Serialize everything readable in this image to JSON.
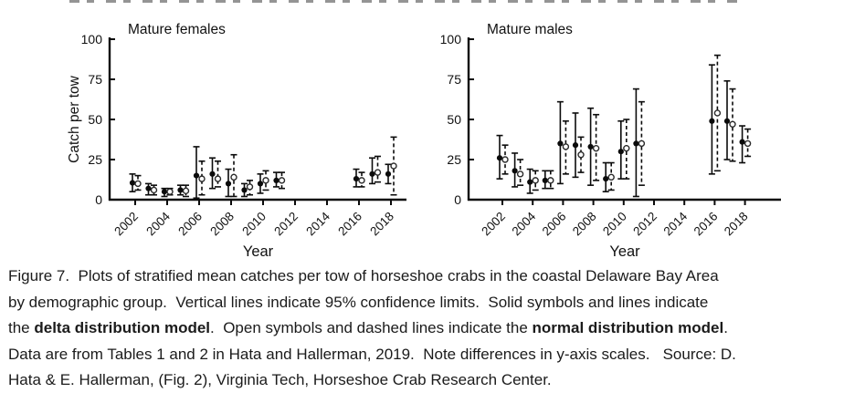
{
  "caption": {
    "line1": "Figure 7.  Plots of stratified mean catches per tow of horseshoe crabs in the coastal Delaware Bay Area",
    "line2": "by demographic group.  Vertical lines indicate 95% confidence limits.  Solid symbols and lines indicate",
    "line3_parts": {
      "a": "the ",
      "b": "delta distribution model",
      "c": ".  Open symbols and dashed lines indicate the ",
      "d": "normal distribution model",
      "e": "."
    },
    "line4": "Data are from Tables 1 and 2 in Hata and Hallerman, 2019.  Note differences in y-axis scales.   Source: D.",
    "line5": "Hata & E. Hallerman, (Fig. 2), Virginia Tech, Horseshoe Crab Research Center."
  },
  "chart_data": [
    {
      "type": "scatter",
      "title": "Mature females",
      "xlabel": "Year",
      "ylabel": "Catch per tow",
      "ylim": [
        0,
        100
      ],
      "yticks": [
        0,
        25,
        50,
        75,
        100
      ],
      "xtick_labels": [
        "2002",
        "2004",
        "2006",
        "2008",
        "2010",
        "2012",
        "2014",
        "2016",
        "2018"
      ],
      "x": [
        2002,
        2003,
        2004,
        2005,
        2006,
        2007,
        2008,
        2009,
        2010,
        2011,
        2016,
        2017,
        2018
      ],
      "errorbar_meaning": "95% confidence limits",
      "series": [
        {
          "name": "delta distribution model",
          "marker": "filled-circle",
          "line": "solid",
          "values": [
            10.5,
            7,
            5,
            6,
            15,
            16,
            10,
            6,
            10,
            12,
            13,
            16,
            16
          ],
          "ci_low": [
            5,
            3,
            2,
            3,
            1,
            7,
            2,
            2,
            4,
            8,
            8,
            10,
            10
          ],
          "ci_high": [
            16,
            10,
            7,
            9,
            33,
            26,
            19,
            10,
            16,
            17,
            19,
            26,
            22
          ]
        },
        {
          "name": "normal distribution model",
          "marker": "open-circle",
          "line": "dashed",
          "values": [
            10,
            6,
            5,
            5.5,
            13,
            13,
            14,
            8,
            12,
            12,
            12,
            17,
            21
          ],
          "ci_low": [
            6,
            3,
            3,
            2,
            3,
            8,
            2,
            3,
            6,
            7,
            8,
            11,
            3
          ],
          "ci_high": [
            15,
            9,
            7,
            9,
            24,
            24,
            28,
            12,
            18,
            17,
            17,
            27,
            39
          ]
        }
      ]
    },
    {
      "type": "scatter",
      "title": "Mature males",
      "xlabel": "Year",
      "ylabel": "",
      "ylim": [
        0,
        100
      ],
      "yticks": [
        0,
        25,
        50,
        75,
        100
      ],
      "xtick_labels": [
        "2002",
        "2004",
        "2006",
        "2008",
        "2010",
        "2012",
        "2014",
        "2016",
        "2018"
      ],
      "x": [
        2002,
        2003,
        2004,
        2005,
        2006,
        2007,
        2008,
        2009,
        2010,
        2011,
        2016,
        2017,
        2018
      ],
      "errorbar_meaning": "95% confidence limits",
      "series": [
        {
          "name": "delta distribution model",
          "marker": "filled-circle",
          "line": "solid",
          "values": [
            26,
            18,
            11,
            12,
            35,
            34,
            33,
            13,
            30,
            35,
            49,
            49,
            36
          ],
          "ci_low": [
            13,
            8,
            4,
            7,
            10,
            14,
            9,
            5,
            13,
            2,
            16,
            25,
            23
          ],
          "ci_high": [
            40,
            29,
            19,
            18,
            61,
            54,
            57,
            23,
            49,
            69,
            84,
            74,
            46
          ]
        },
        {
          "name": "normal distribution model",
          "marker": "open-circle",
          "line": "dashed",
          "values": [
            25,
            16,
            12,
            12,
            33,
            28,
            32,
            14,
            32,
            35,
            54,
            47,
            35
          ],
          "ci_low": [
            16,
            9,
            6,
            7,
            16,
            17,
            12,
            6,
            13,
            9,
            18,
            24,
            27
          ],
          "ci_high": [
            34,
            25,
            18,
            18,
            49,
            39,
            53,
            23,
            50,
            61,
            90,
            69,
            44
          ]
        }
      ]
    }
  ]
}
